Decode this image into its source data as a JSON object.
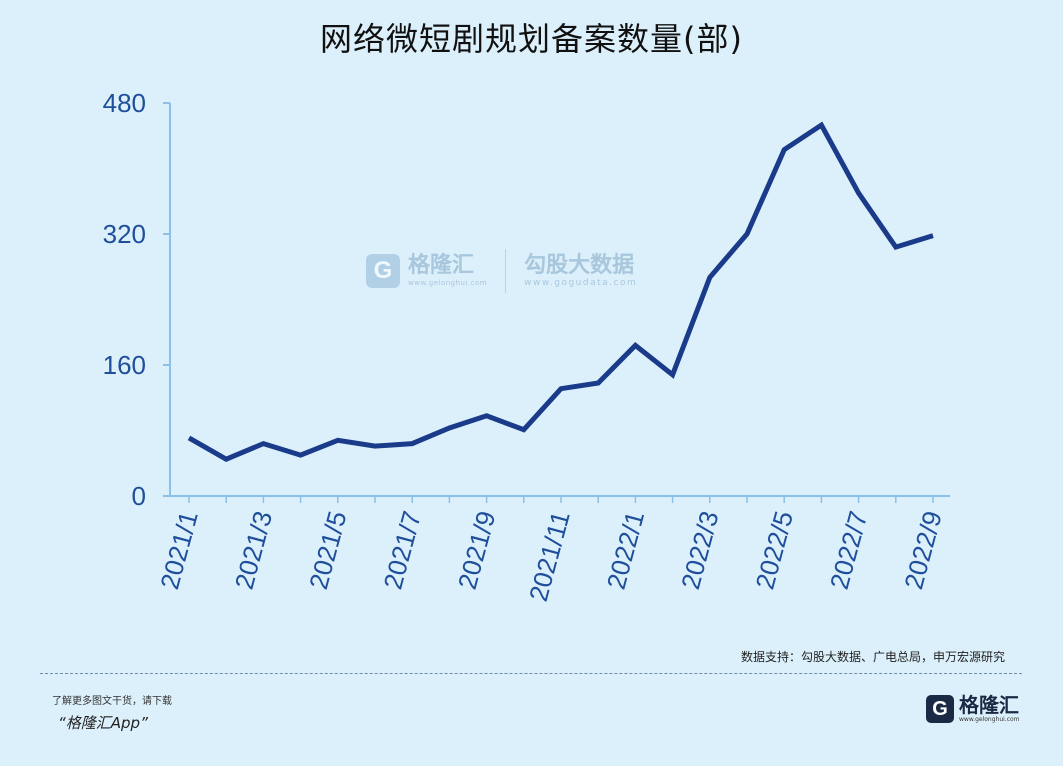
{
  "chart_data": {
    "type": "line",
    "title": "网络微短剧规划备案数量(部)",
    "xlabel": "",
    "ylabel": "",
    "categories": [
      "2021/1",
      "2021/2",
      "2021/3",
      "2021/4",
      "2021/5",
      "2021/6",
      "2021/7",
      "2021/8",
      "2021/9",
      "2021/10",
      "2021/11",
      "2021/12",
      "2022/1",
      "2022/2",
      "2022/3",
      "2022/4",
      "2022/5",
      "2022/6",
      "2022/7",
      "2022/8",
      "2022/9"
    ],
    "x_tick_labels": [
      "2021/1",
      "2021/3",
      "2021/5",
      "2021/7",
      "2021/9",
      "2021/11",
      "2022/1",
      "2022/3",
      "2022/5",
      "2022/7",
      "2022/9"
    ],
    "y_ticks": [
      0,
      160,
      320,
      480
    ],
    "ylim": [
      0,
      480
    ],
    "grid": false,
    "series": [
      {
        "values": [
          71,
          45,
          64,
          50,
          68,
          61,
          64,
          83,
          98,
          81,
          131,
          138,
          184,
          148,
          267,
          320,
          423,
          453,
          370,
          304,
          318
        ],
        "color": "#1a3a8a"
      }
    ],
    "axis_color": "#8cc0e6",
    "label_color": "#1f4e9b"
  },
  "watermark": {
    "brand1_logo": "G",
    "brand1_name": "格隆汇",
    "brand1_url": "www.gelonghui.com",
    "brand2_name": "勾股大数据",
    "brand2_url": "www.gogudata.com"
  },
  "source_text": "数据支持：勾股大数据、广电总局，申万宏源研究",
  "footer": {
    "promo_line": "了解更多图文干货，请下载",
    "app_name": "“格隆汇App”",
    "logo_letter": "G",
    "logo_name": "格隆汇",
    "logo_url": "www.gelonghui.com"
  }
}
